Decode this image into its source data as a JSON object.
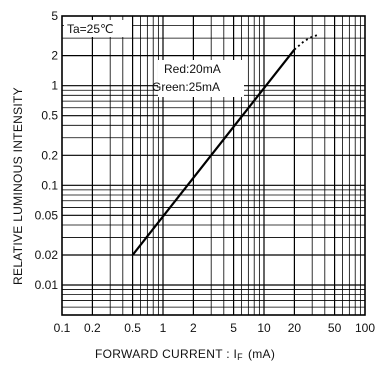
{
  "chart_data": {
    "type": "line",
    "x_scale": "log",
    "y_scale": "log",
    "xlim": [
      0.1,
      100
    ],
    "ylim": [
      0.005,
      5
    ],
    "grid": true,
    "xlabel": "FORWARD CURRENT : I",
    "xlabel_sub": "F",
    "xlabel_unit": "(mA)",
    "ylabel": "RELATIVE LUMINOUS INTENSITY",
    "x_ticks": [
      0.1,
      0.2,
      0.5,
      1,
      2,
      5,
      10,
      20,
      50,
      100
    ],
    "x_tick_labels": [
      "0.1",
      "0.2",
      "0.5",
      "1",
      "2",
      "5",
      "10",
      "20",
      "50",
      "100"
    ],
    "y_ticks": [
      0.01,
      0.02,
      0.05,
      0.1,
      0.2,
      0.5,
      1,
      2,
      5
    ],
    "y_tick_labels": [
      "0.01",
      "0.02",
      "0.05",
      "0.1",
      "0.2",
      "0.5",
      "1",
      "2",
      "5"
    ],
    "condition_label": "Ta=25℃",
    "annotations": [
      "Red:20mA",
      "Green:25mA"
    ],
    "series": [
      {
        "style": "solid",
        "x": [
          0.5,
          20
        ],
        "y": [
          0.02,
          2.3
        ]
      },
      {
        "style": "dotted",
        "x": [
          20,
          25,
          30,
          35
        ],
        "y": [
          2.3,
          2.8,
          3.1,
          3.25
        ]
      }
    ]
  }
}
